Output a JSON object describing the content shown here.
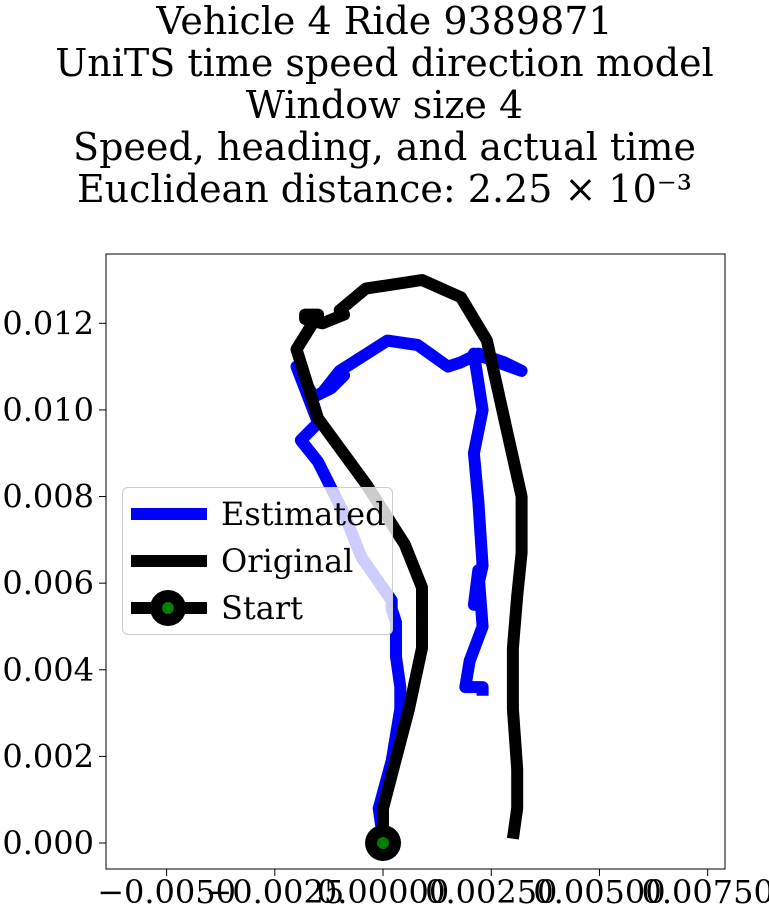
{
  "chart_data": {
    "type": "line",
    "title": [
      "Vehicle 4 Ride 9389871",
      "UniTS time speed direction model",
      "Window size 4",
      "Speed, heading, and actual time",
      "Euclidean distance: 2.25 × 10⁻³"
    ],
    "xlabel": "",
    "ylabel": "",
    "xlim": [
      -0.0064,
      0.0079
    ],
    "ylim": [
      -0.0006,
      0.0136
    ],
    "xticks": [
      -0.005,
      -0.0025,
      0.0,
      0.0025,
      0.005,
      0.0075
    ],
    "xtick_labels": [
      "−0.0050",
      "−0.0025",
      "0.00000",
      "0.00250",
      "0.00500",
      "0.00750"
    ],
    "yticks": [
      0.0,
      0.002,
      0.004,
      0.006,
      0.008,
      0.01,
      0.012
    ],
    "ytick_labels": [
      "0.000",
      "0.002",
      "0.004",
      "0.006",
      "0.008",
      "0.010",
      "0.012"
    ],
    "grid": false,
    "legend_position": "center-left",
    "series": [
      {
        "name": "Estimated",
        "color": "#0000ff",
        "x": [
          0.0,
          -0.0001,
          0.0002,
          0.0004,
          0.0004,
          0.0003,
          0.0003,
          0.0002,
          0.0002,
          -0.0005,
          -0.0009,
          -0.0015,
          -0.0019,
          -0.0015,
          -0.002,
          -0.0016,
          -0.0012,
          -0.0009,
          -0.0014,
          -0.001,
          0.0001,
          0.0008,
          0.0015,
          0.0018,
          0.0022,
          0.0028,
          0.0032,
          0.0021,
          0.0023,
          0.0021,
          0.0022,
          0.0023,
          0.0021,
          0.0022,
          0.0023,
          0.002,
          0.0019,
          0.0023,
          0.0023
        ],
        "y": [
          0.0001,
          0.0008,
          0.0019,
          0.0031,
          0.0036,
          0.0043,
          0.0051,
          0.0054,
          0.0056,
          0.0066,
          0.0076,
          0.0088,
          0.0093,
          0.0097,
          0.011,
          0.0103,
          0.0105,
          0.0108,
          0.0104,
          0.0109,
          0.0116,
          0.0115,
          0.011,
          0.0111,
          0.0113,
          0.0111,
          0.0109,
          0.0113,
          0.01,
          0.009,
          0.0079,
          0.0064,
          0.0055,
          0.0063,
          0.005,
          0.0042,
          0.0036,
          0.0036,
          0.0034
        ]
      },
      {
        "name": "Original",
        "color": "#000000",
        "x": [
          0.0,
          0.0,
          0.0006,
          0.0009,
          0.0009,
          0.0005,
          -0.0004,
          -0.0015,
          -0.002,
          -0.0015,
          -0.0018,
          -0.0018,
          -0.0018,
          -0.0014,
          -0.0009,
          -0.001,
          -0.0004,
          0.0009,
          0.0018,
          0.0024,
          0.0028,
          0.0032,
          0.0032,
          0.0031,
          0.003,
          0.003,
          0.0031,
          0.0031,
          0.003
        ],
        "y": [
          0.0,
          0.0008,
          0.0031,
          0.0045,
          0.0059,
          0.0069,
          0.0083,
          0.0098,
          0.0114,
          0.0122,
          0.0122,
          0.0122,
          0.0121,
          0.012,
          0.0122,
          0.0123,
          0.0128,
          0.013,
          0.0126,
          0.0116,
          0.0098,
          0.008,
          0.0067,
          0.0057,
          0.0045,
          0.0031,
          0.0017,
          0.0008,
          0.0001
        ]
      }
    ],
    "markers": [
      {
        "name": "Start",
        "x": 0.0,
        "y": 0.0,
        "color": "#008000",
        "edge_color": "#000000"
      }
    ]
  }
}
